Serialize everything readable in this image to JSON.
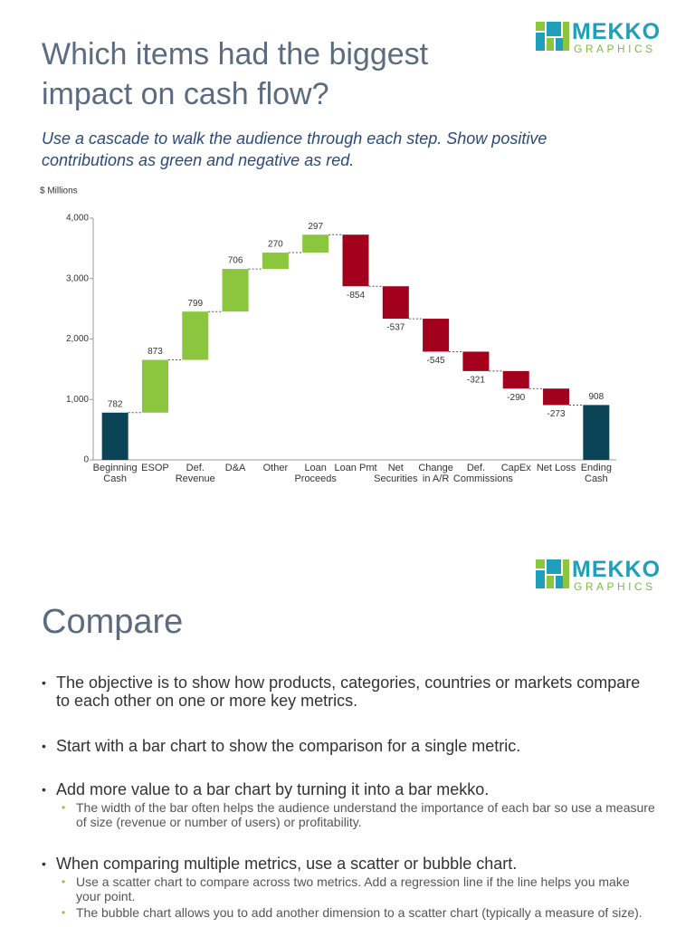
{
  "slide1": {
    "logo": {
      "top": "MEKKO",
      "bottom": "GRAPHICS"
    },
    "title": "Which items had the biggest impact on cash flow?",
    "subtitle": "Use a cascade to walk the audience through each step. Show positive contributions as green and negative as red.",
    "chart_data": {
      "type": "waterfall",
      "y_label": "$ Millions",
      "categories": [
        "Beginning Cash",
        "ESOP",
        "Def. Revenue",
        "D&A",
        "Other",
        "Loan Proceeds",
        "Loan Pmt",
        "Net Securities",
        "Change in A/R",
        "Def. Commissions",
        "CapEx",
        "Net Loss",
        "Ending Cash"
      ],
      "values": [
        782,
        873,
        799,
        706,
        270,
        297,
        -854,
        -537,
        -545,
        -321,
        -290,
        -273,
        908
      ],
      "total_indices": [
        0,
        12
      ],
      "colors": {
        "total": "#0b4457",
        "positive": "#8cc63e",
        "negative": "#a3001e"
      },
      "ylim": [
        0,
        4000
      ],
      "yticks": [
        0,
        {
          "value": 1000,
          "label": "1,000"
        },
        {
          "value": 2000,
          "label": "2,000"
        },
        {
          "value": 3000,
          "label": "3,000"
        },
        {
          "value": 4000,
          "label": "4,000"
        }
      ]
    }
  },
  "slide2": {
    "logo": {
      "top": "MEKKO",
      "bottom": "GRAPHICS"
    },
    "title": "Compare",
    "bullets": [
      {
        "text": "The objective is to show how products, categories, countries or markets compare to each other on one or more key metrics.",
        "sub": []
      },
      {
        "text": "Start with a bar chart to show the comparison for a single metric.",
        "sub": []
      },
      {
        "text": "Add more value to a bar chart by turning it into a bar mekko.",
        "sub": [
          "The width of the bar often helps the audience understand the importance of each bar so use a measure of size (revenue or number of users) or profitability."
        ]
      },
      {
        "text": "When comparing multiple metrics, use a scatter or bubble chart.",
        "sub": [
          "Use a scatter chart to compare across two metrics. Add a regression line if the line helps you make your point.",
          "The bubble chart allows you to add another dimension to a scatter chart (typically a measure of size)."
        ]
      }
    ]
  }
}
